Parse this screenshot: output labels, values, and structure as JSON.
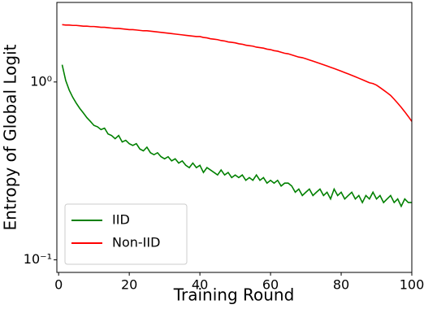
{
  "chart_data": {
    "type": "line",
    "xlabel": "Training Round",
    "ylabel": "Entropy of Global Logit",
    "x": [
      1,
      2,
      3,
      4,
      5,
      6,
      7,
      8,
      9,
      10,
      11,
      12,
      13,
      14,
      15,
      16,
      17,
      18,
      19,
      20,
      21,
      22,
      23,
      24,
      25,
      26,
      27,
      28,
      29,
      30,
      31,
      32,
      33,
      34,
      35,
      36,
      37,
      38,
      39,
      40,
      41,
      42,
      43,
      44,
      45,
      46,
      47,
      48,
      49,
      50,
      51,
      52,
      53,
      54,
      55,
      56,
      57,
      58,
      59,
      60,
      61,
      62,
      63,
      64,
      65,
      66,
      67,
      68,
      69,
      70,
      71,
      72,
      73,
      74,
      75,
      76,
      77,
      78,
      79,
      80,
      81,
      82,
      83,
      84,
      85,
      86,
      87,
      88,
      89,
      90,
      91,
      92,
      93,
      94,
      95,
      96,
      97,
      98,
      99,
      100
    ],
    "series": [
      {
        "name": "IID",
        "color": "#008000",
        "values": [
          1.25,
          1.02,
          0.9,
          0.82,
          0.76,
          0.71,
          0.67,
          0.63,
          0.6,
          0.57,
          0.56,
          0.54,
          0.55,
          0.51,
          0.5,
          0.48,
          0.5,
          0.46,
          0.47,
          0.45,
          0.44,
          0.45,
          0.42,
          0.41,
          0.43,
          0.4,
          0.39,
          0.4,
          0.38,
          0.37,
          0.38,
          0.36,
          0.37,
          0.35,
          0.36,
          0.34,
          0.33,
          0.35,
          0.33,
          0.34,
          0.31,
          0.33,
          0.32,
          0.31,
          0.3,
          0.32,
          0.3,
          0.31,
          0.29,
          0.3,
          0.29,
          0.3,
          0.28,
          0.29,
          0.28,
          0.3,
          0.28,
          0.29,
          0.27,
          0.28,
          0.27,
          0.28,
          0.26,
          0.27,
          0.27,
          0.26,
          0.24,
          0.25,
          0.23,
          0.24,
          0.25,
          0.23,
          0.24,
          0.25,
          0.23,
          0.24,
          0.22,
          0.25,
          0.23,
          0.24,
          0.22,
          0.23,
          0.24,
          0.22,
          0.23,
          0.21,
          0.23,
          0.22,
          0.24,
          0.22,
          0.23,
          0.21,
          0.22,
          0.23,
          0.21,
          0.22,
          0.2,
          0.22,
          0.21,
          0.21
        ]
      },
      {
        "name": "Non-IID",
        "color": "#ff0000",
        "values": [
          2.1,
          2.09,
          2.09,
          2.08,
          2.08,
          2.07,
          2.06,
          2.06,
          2.05,
          2.05,
          2.04,
          2.03,
          2.03,
          2.02,
          2.01,
          2.0,
          2.0,
          1.99,
          1.98,
          1.97,
          1.97,
          1.96,
          1.95,
          1.94,
          1.94,
          1.93,
          1.92,
          1.91,
          1.9,
          1.89,
          1.88,
          1.87,
          1.86,
          1.85,
          1.84,
          1.83,
          1.82,
          1.81,
          1.8,
          1.8,
          1.78,
          1.77,
          1.75,
          1.74,
          1.73,
          1.71,
          1.7,
          1.68,
          1.67,
          1.66,
          1.64,
          1.63,
          1.61,
          1.6,
          1.59,
          1.57,
          1.56,
          1.55,
          1.53,
          1.52,
          1.5,
          1.49,
          1.47,
          1.45,
          1.44,
          1.42,
          1.4,
          1.38,
          1.37,
          1.35,
          1.33,
          1.31,
          1.29,
          1.27,
          1.25,
          1.23,
          1.21,
          1.19,
          1.17,
          1.15,
          1.13,
          1.11,
          1.09,
          1.07,
          1.05,
          1.03,
          1.01,
          0.99,
          0.98,
          0.96,
          0.93,
          0.9,
          0.87,
          0.84,
          0.8,
          0.76,
          0.72,
          0.68,
          0.64,
          0.6
        ]
      }
    ],
    "xlim": [
      -0.5,
      100
    ],
    "xticks": [
      0,
      20,
      40,
      60,
      80,
      100
    ],
    "ylim": [
      0.085,
      2.8
    ],
    "yscale": "log",
    "yticks": [
      {
        "value": 0.1,
        "label": "10⁻¹"
      },
      {
        "value": 1,
        "label": "10⁰"
      }
    ],
    "legend": "lower left"
  }
}
